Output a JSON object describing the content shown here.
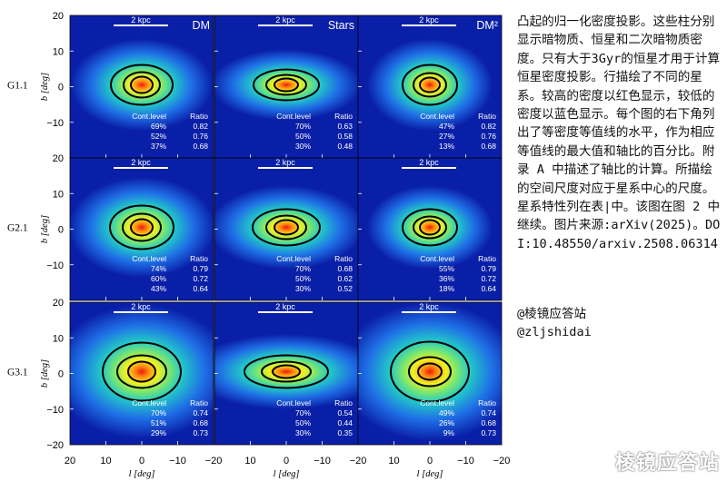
{
  "figure": {
    "columns": [
      "DM",
      "Stars",
      "DM²"
    ],
    "rows": [
      "G1.1",
      "G2.1",
      "G3.1"
    ],
    "scale_bar_label": "2 kpc",
    "y_axis_label": "b [deg]",
    "x_axis_label": "l [deg]",
    "y_ticks": [
      "20",
      "10",
      "0",
      "−10",
      "−20"
    ],
    "x_ticks": [
      "20",
      "10",
      "0",
      "−10",
      "−20"
    ],
    "table_header": [
      "Cont.level",
      "Ratio"
    ],
    "colormap": [
      "#0a1fa8",
      "#1f6fe6",
      "#22c8c8",
      "#7fe86a",
      "#f3f020",
      "#ff8a10",
      "#e81a10"
    ],
    "panels": [
      [
        {
          "rx": [
            34,
            20,
            12
          ],
          "ry": [
            22,
            14,
            9
          ],
          "levels": [
            [
              "69%",
              "0.82"
            ],
            [
              "52%",
              "0.76"
            ],
            [
              "37%",
              "0.68"
            ]
          ]
        },
        {
          "rx": [
            36,
            22,
            13
          ],
          "ry": [
            17,
            11,
            7
          ],
          "levels": [
            [
              "70%",
              "0.63"
            ],
            [
              "50%",
              "0.58"
            ],
            [
              "30%",
              "0.48"
            ]
          ]
        },
        {
          "rx": [
            30,
            18,
            11
          ],
          "ry": [
            22,
            13,
            8
          ],
          "levels": [
            [
              "47%",
              "0.82"
            ],
            [
              "27%",
              "0.76"
            ],
            [
              "13%",
              "0.68"
            ]
          ]
        }
      ],
      [
        {
          "rx": [
            35,
            21,
            12
          ],
          "ry": [
            24,
            15,
            9
          ],
          "levels": [
            [
              "74%",
              "0.79"
            ],
            [
              "60%",
              "0.72"
            ],
            [
              "43%",
              "0.64"
            ]
          ]
        },
        {
          "rx": [
            37,
            22,
            13
          ],
          "ry": [
            20,
            13,
            8
          ],
          "levels": [
            [
              "70%",
              "0.68"
            ],
            [
              "50%",
              "0.62"
            ],
            [
              "30%",
              "0.52"
            ]
          ]
        },
        {
          "rx": [
            30,
            18,
            11
          ],
          "ry": [
            20,
            12,
            8
          ],
          "levels": [
            [
              "55%",
              "0.79"
            ],
            [
              "36%",
              "0.72"
            ],
            [
              "18%",
              "0.64"
            ]
          ]
        }
      ],
      [
        {
          "rx": [
            43,
            27,
            15
          ],
          "ry": [
            32,
            18,
            11
          ],
          "levels": [
            [
              "70%",
              "0.74"
            ],
            [
              "51%",
              "0.68"
            ],
            [
              "29%",
              "0.73"
            ]
          ]
        },
        {
          "rx": [
            46,
            27,
            15
          ],
          "ry": [
            18,
            11,
            7
          ],
          "levels": [
            [
              "70%",
              "0.54"
            ],
            [
              "50%",
              "0.44"
            ],
            [
              "30%",
              "0.35"
            ]
          ]
        },
        {
          "rx": [
            43,
            23,
            13
          ],
          "ry": [
            33,
            16,
            9
          ],
          "levels": [
            [
              "49%",
              "0.74"
            ],
            [
              "26%",
              "0.68"
            ],
            [
              "9%",
              "0.73"
            ]
          ]
        }
      ]
    ]
  },
  "caption": "凸起的归一化密度投影。这些柱分别显示暗物质、恒星和二次暗物质密度。只有大于3Gyr的恒星才用于计算恒星密度投影。行描绘了不同的星系。较高的密度以红色显示，较低的密度以蓝色显示。每个图的右下角列出了等密度等值线的水平，作为相应等值线的最大值和轴比的百分比。附录 A 中描述了轴比的计算。所描绘的空间尺度对应于星系中心的尺度。星系特性列在表|中。该图在图 2 中继续。图片来源:arXiv(2025)。DOI:10.48550/arxiv.2508.06314",
  "credit_1": "@棱镜应答站",
  "credit_2": "@zljshidai",
  "watermark": "棱镜应答站"
}
